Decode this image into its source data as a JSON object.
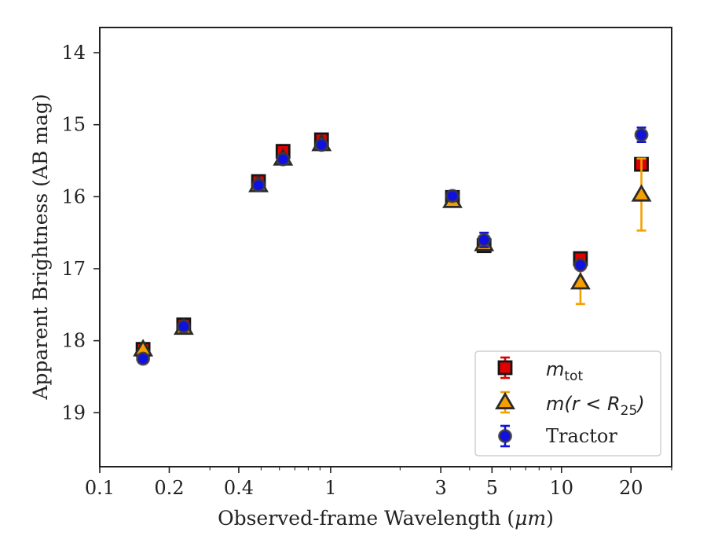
{
  "chart_data": {
    "type": "scatter",
    "xlabel_main": "Observed-frame Wavelength (",
    "xlabel_unit": "μm",
    "xlabel_end": ")",
    "ylabel": "Apparent Brightness (AB mag)",
    "x_scale": "log",
    "y_inverted": true,
    "xlim": [
      0.1,
      30
    ],
    "ylim": [
      19.75,
      13.65
    ],
    "x_ticks": [
      0.1,
      0.2,
      0.4,
      1,
      3,
      5,
      10,
      20
    ],
    "x_tick_labels": [
      "0.1",
      "0.2",
      "0.4",
      "1",
      "3",
      "5",
      "10",
      "20"
    ],
    "y_ticks": [
      14,
      15,
      16,
      17,
      18,
      19
    ],
    "y_tick_labels": [
      "14",
      "15",
      "16",
      "17",
      "18",
      "19"
    ],
    "grid": false,
    "legend_position": "bottom-right",
    "series": [
      {
        "name_base": "m",
        "name_sub": "tot",
        "marker": "square",
        "color": "#e00000",
        "error_color": "#e00000",
        "points": [
          {
            "x": 0.154,
            "y": 18.12,
            "err": 0.04
          },
          {
            "x": 0.231,
            "y": 17.78,
            "err": 0.03
          },
          {
            "x": 0.487,
            "y": 15.79,
            "err": 0.03
          },
          {
            "x": 0.622,
            "y": 15.37,
            "err": 0.03
          },
          {
            "x": 0.913,
            "y": 15.21,
            "err": 0.04
          },
          {
            "x": 3.37,
            "y": 16.01,
            "err": 0.03
          },
          {
            "x": 4.62,
            "y": 16.68,
            "err": 0.03
          },
          {
            "x": 12.08,
            "y": 16.86,
            "err": 0.05
          },
          {
            "x": 22.19,
            "y": 15.55,
            "err": 0.06
          }
        ]
      },
      {
        "name_base": "m",
        "name_args": "(r < R",
        "name_sub": "25",
        "name_close": ")",
        "marker": "triangle",
        "color": "#f5a000",
        "error_color": "#f5a000",
        "points": [
          {
            "x": 0.154,
            "y": 18.12,
            "err": 0.03
          },
          {
            "x": 0.231,
            "y": 17.82,
            "err": 0.03
          },
          {
            "x": 0.487,
            "y": 15.84,
            "err": 0.03
          },
          {
            "x": 0.622,
            "y": 15.47,
            "err": 0.03
          },
          {
            "x": 0.913,
            "y": 15.27,
            "err": 0.03
          },
          {
            "x": 3.37,
            "y": 16.06,
            "err": 0.03
          },
          {
            "x": 4.62,
            "y": 16.66,
            "err": 0.04
          },
          {
            "x": 12.08,
            "y": 17.19,
            "err": 0.3
          },
          {
            "x": 22.19,
            "y": 15.97,
            "err": 0.5
          }
        ]
      },
      {
        "name": "Tractor",
        "marker": "circle",
        "color": "#1010e0",
        "error_color": "#1010e0",
        "points": [
          {
            "x": 0.154,
            "y": 18.25,
            "err": 0.05
          },
          {
            "x": 0.231,
            "y": 17.8,
            "err": 0.03
          },
          {
            "x": 0.487,
            "y": 15.84,
            "err": 0.03
          },
          {
            "x": 0.622,
            "y": 15.48,
            "err": 0.04
          },
          {
            "x": 0.913,
            "y": 15.28,
            "err": 0.03
          },
          {
            "x": 3.37,
            "y": 15.99,
            "err": 0.06
          },
          {
            "x": 4.62,
            "y": 16.6,
            "err": 0.1
          },
          {
            "x": 12.08,
            "y": 16.95,
            "err": 0.03
          },
          {
            "x": 22.19,
            "y": 15.14,
            "err": 0.1
          }
        ]
      }
    ]
  }
}
